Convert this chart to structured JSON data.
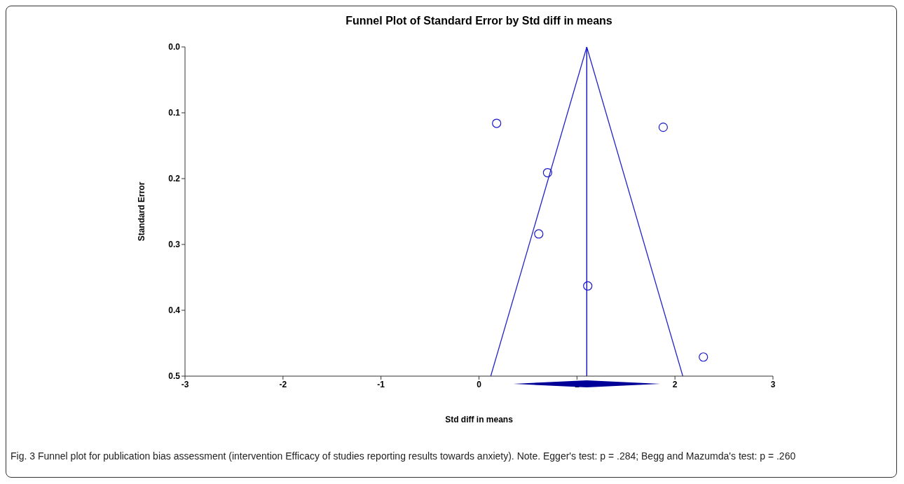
{
  "chart_data": {
    "type": "scatter",
    "title": "Funnel Plot of Standard Error by Std diff in means",
    "xlabel": "Std diff in means",
    "ylabel": "Standard Error",
    "series": [
      {
        "marker": "circle",
        "color": "#1a1acc",
        "x": [
          0.18,
          1.88,
          0.7,
          0.61,
          1.11,
          2.29
        ],
        "values": [
          0.116,
          0.122,
          0.191,
          0.284,
          0.363,
          0.471
        ]
      },
      {
        "type": "line",
        "color": "#2222cc",
        "x": [
          0.12,
          1.1,
          2.08
        ],
        "values": [
          0.5,
          0,
          0.5
        ]
      }
    ],
    "ref_lines": [
      {
        "axis": "x",
        "value": 1.1,
        "color": "#0000cc"
      }
    ],
    "xlim": [
      -3,
      3
    ],
    "xticks": [
      -3,
      -2,
      -1,
      0,
      1,
      2,
      3
    ],
    "ylim": [
      0.5,
      0
    ],
    "yticks": [
      {
        "value": 0,
        "label": "0.0"
      },
      0.1,
      0.2,
      0.3,
      0.4,
      0.5
    ],
    "grid": false,
    "legend": false,
    "annotations": [
      "Fig. 3 Funnel plot for publication bias assessment (intervention Efficacy of studies reporting results towards anxiety). Note. Egger's test: p = .284; Begg and Mazumda's test: p = .260"
    ]
  }
}
